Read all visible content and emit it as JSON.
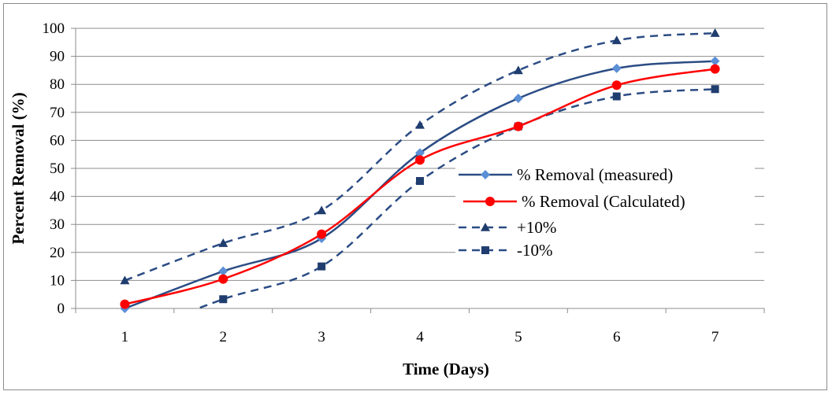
{
  "chart_data": {
    "type": "line",
    "title": "",
    "xlabel": "Time (Days)",
    "ylabel": "Percent Removal (%)",
    "x": [
      1,
      2,
      3,
      4,
      5,
      6,
      7
    ],
    "x_ticks": [
      "1",
      "2",
      "3",
      "4",
      "5",
      "6",
      "7"
    ],
    "y_ticks": [
      "0",
      "10",
      "20",
      "30",
      "40",
      "50",
      "60",
      "70",
      "80",
      "90",
      "100"
    ],
    "ylim": [
      0,
      100
    ],
    "grid": "horizontal",
    "legend_position": "center-right",
    "series": [
      {
        "name": "% Removal (measured)",
        "values": [
          0,
          13.3,
          25,
          55.5,
          75,
          85.7,
          88.3
        ],
        "color": "#2b4c84",
        "marker_color": "#5b8fd6",
        "marker": "diamond",
        "line": "solid"
      },
      {
        "name": "% Removal (Calculated)",
        "values": [
          1.5,
          10.5,
          26.5,
          53,
          65,
          79.7,
          85.5
        ],
        "color": "#ff0000",
        "marker_color": "#ff0000",
        "marker": "circle",
        "line": "solid"
      },
      {
        "name": "+10%",
        "values": [
          10,
          23.3,
          35,
          65.5,
          85,
          95.7,
          98.3
        ],
        "color": "#2b4c84",
        "marker_color": "#1f3d6e",
        "marker": "triangle",
        "line": "dashed"
      },
      {
        "name": "-10%",
        "values": [
          -10,
          3.3,
          15,
          45.5,
          65,
          75.7,
          78.3
        ],
        "color": "#2b4c84",
        "marker_color": "#1f3d6e",
        "marker": "square",
        "line": "dashed"
      }
    ]
  }
}
